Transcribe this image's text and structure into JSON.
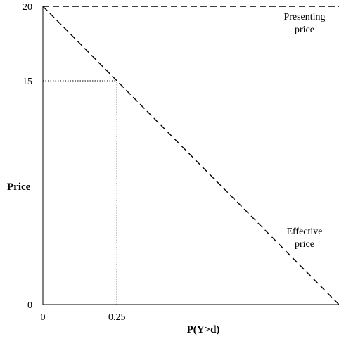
{
  "chart_data": {
    "type": "line",
    "xlabel": "P(Y>d)",
    "ylabel": "Price",
    "xlim": [
      0,
      1
    ],
    "ylim": [
      0,
      20
    ],
    "x_ticks": [
      {
        "value": 0,
        "label": "0"
      },
      {
        "value": 0.25,
        "label": "0.25"
      }
    ],
    "y_ticks": [
      {
        "value": 0,
        "label": "0"
      },
      {
        "value": 15,
        "label": "15"
      },
      {
        "value": 20,
        "label": "20"
      }
    ],
    "series": [
      {
        "name": "Presenting price",
        "style": "dashed",
        "x": [
          0,
          1
        ],
        "y": [
          20,
          20
        ]
      },
      {
        "name": "Effective price",
        "style": "dashed",
        "x": [
          0,
          1
        ],
        "y": [
          20,
          0
        ]
      }
    ],
    "reference_lines": [
      {
        "style": "dotted",
        "x": [
          0,
          0.25
        ],
        "y": [
          15,
          15
        ]
      },
      {
        "style": "dotted",
        "x": [
          0.25,
          0.25
        ],
        "y": [
          0,
          15
        ]
      }
    ],
    "annotations": [
      {
        "series": "Presenting price",
        "lines": [
          "Presenting",
          "price"
        ]
      },
      {
        "series": "Effective price",
        "lines": [
          "Effective",
          "price"
        ]
      }
    ],
    "grid": false,
    "legend": "none"
  }
}
